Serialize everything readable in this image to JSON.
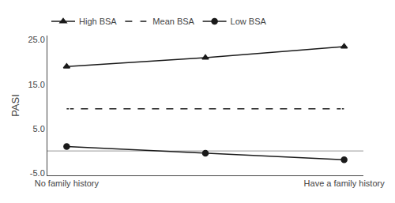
{
  "chart_data": {
    "type": "line",
    "y_label": "PASI",
    "categories": [
      "No family history",
      null,
      "Have a family history"
    ],
    "series": [
      {
        "name": "High BSA",
        "color": "#1a1a1a",
        "marker": "triangle-up",
        "line_style": "solid",
        "values": [
          19.0,
          21.0,
          23.5
        ]
      },
      {
        "name": "Mean BSA",
        "color": "#1a1a1a",
        "marker": "square-open",
        "line_style": "dashed",
        "values": [
          9.5,
          9.5,
          9.5
        ]
      },
      {
        "name": "Low BSA",
        "color": "#1a1a1a",
        "marker": "circle",
        "line_style": "solid",
        "values": [
          1.0,
          -0.5,
          -2.0
        ]
      }
    ],
    "reference_lines": [
      {
        "y": 0.0,
        "color": "#999999"
      }
    ],
    "ylim": [
      -5.5,
      26.0
    ],
    "yticks": [
      {
        "value": -5.0,
        "label": "-5.0"
      },
      {
        "value": 5.0,
        "label": "5.0"
      },
      {
        "value": 15.0,
        "label": "15.0"
      },
      {
        "value": 25.0,
        "label": "25.0"
      }
    ],
    "grid": false,
    "legend": "upper left"
  }
}
